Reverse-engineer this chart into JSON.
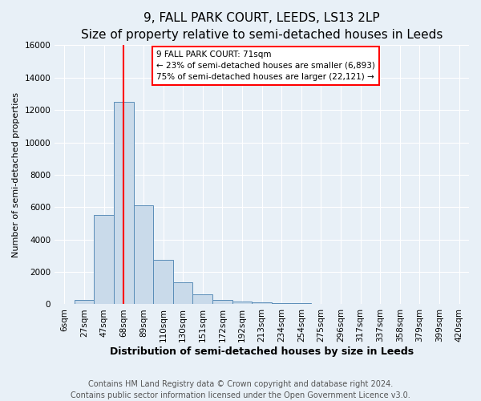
{
  "title": "9, FALL PARK COURT, LEEDS, LS13 2LP",
  "subtitle": "Size of property relative to semi-detached houses in Leeds",
  "xlabel": "Distribution of semi-detached houses by size in Leeds",
  "ylabel": "Number of semi-detached properties",
  "bar_labels": [
    "6sqm",
    "27sqm",
    "47sqm",
    "68sqm",
    "89sqm",
    "110sqm",
    "130sqm",
    "151sqm",
    "172sqm",
    "192sqm",
    "213sqm",
    "234sqm",
    "254sqm",
    "275sqm",
    "296sqm",
    "317sqm",
    "337sqm",
    "358sqm",
    "379sqm",
    "399sqm",
    "420sqm"
  ],
  "bar_values": [
    0,
    280,
    5500,
    12500,
    6100,
    2750,
    1350,
    620,
    280,
    170,
    130,
    80,
    70,
    0,
    0,
    0,
    0,
    0,
    0,
    0,
    0
  ],
  "bar_color": "#c9daea",
  "bar_edge_color": "#5a8db8",
  "property_line_x": 3.0,
  "property_line_color": "red",
  "annotation_line1": "9 FALL PARK COURT: 71sqm",
  "annotation_line2": "← 23% of semi-detached houses are smaller (6,893)",
  "annotation_line3": "75% of semi-detached houses are larger (22,121) →",
  "annotation_box_facecolor": "white",
  "annotation_box_edgecolor": "red",
  "ylim": [
    0,
    16000
  ],
  "yticks": [
    0,
    2000,
    4000,
    6000,
    8000,
    10000,
    12000,
    14000,
    16000
  ],
  "footer_line1": "Contains HM Land Registry data © Crown copyright and database right 2024.",
  "footer_line2": "Contains public sector information licensed under the Open Government Licence v3.0.",
  "background_color": "#e8f0f7",
  "plot_bg_color": "#e8f0f7",
  "grid_color": "white",
  "title_fontsize": 11,
  "subtitle_fontsize": 9.5,
  "xlabel_fontsize": 9,
  "ylabel_fontsize": 8,
  "tick_fontsize": 7.5,
  "annotation_fontsize": 7.5,
  "footer_fontsize": 7
}
